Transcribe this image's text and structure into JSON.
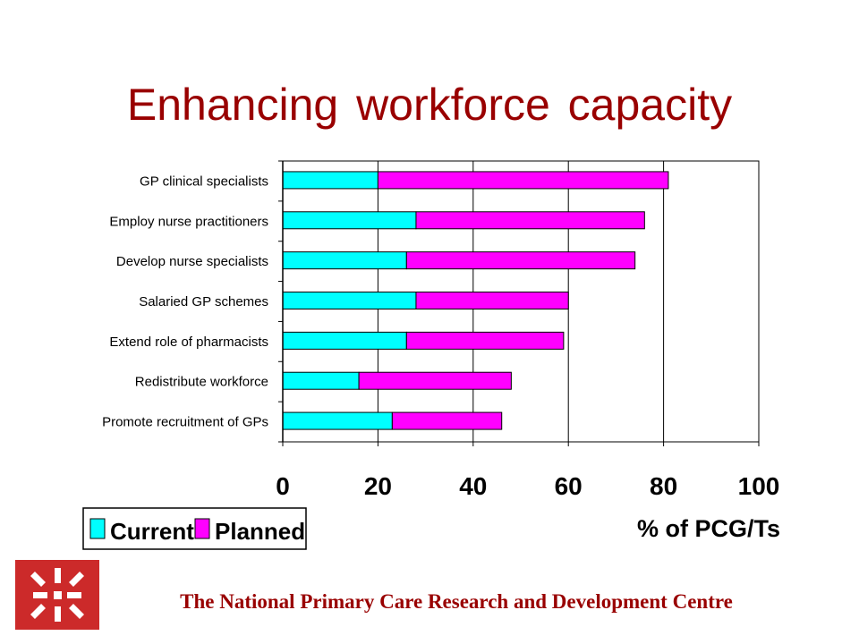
{
  "slide": {
    "title": "Enhancing workforce capacity",
    "footer": "The National Primary Care Research and Development Centre"
  },
  "colors": {
    "title": "#990000",
    "current": "#00ffff",
    "planned": "#ff00ff",
    "logo_bg": "#cc2a2a"
  },
  "icons": {
    "logo": "nprdc-logo-icon"
  },
  "chart_data": {
    "type": "bar",
    "orientation": "horizontal",
    "stacked": true,
    "categories": [
      "GP clinical specialists",
      "Employ nurse practitioners",
      "Develop nurse specialists",
      "Salaried GP schemes",
      "Extend role of pharmacists",
      "Redistribute workforce",
      "Promote recruitment of GPs"
    ],
    "series": [
      {
        "name": "Current",
        "values": [
          20,
          28,
          26,
          28,
          26,
          16,
          23
        ]
      },
      {
        "name": "Planned",
        "values": [
          61,
          48,
          48,
          32,
          33,
          32,
          23
        ]
      }
    ],
    "xlabel": "% of PCG/Ts",
    "ylabel": "",
    "xlim": [
      0,
      100
    ],
    "xticks": [
      "0",
      "20",
      "40",
      "60",
      "80",
      "100"
    ],
    "grid": "vertical gridlines",
    "legend_position": "bottom-left"
  }
}
